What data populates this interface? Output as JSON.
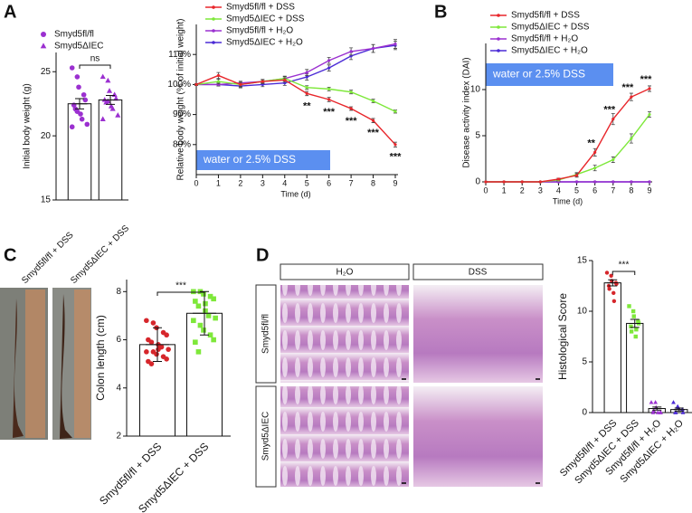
{
  "panel_labels": [
    "A",
    "B",
    "C",
    "D"
  ],
  "photos": {
    "labels": [
      "Smyd5fl/fl + DSS",
      "Smyd5ΔIEC + DSS"
    ]
  },
  "histology": {
    "columns": [
      "H₂O",
      "DSS"
    ],
    "rows": [
      "Smyd5fl/fl",
      "Smyd5ΔIEC"
    ]
  },
  "chart_data": [
    {
      "type": "dot_bar",
      "y_label": "Initial body weight (g)",
      "legend": true,
      "significance": "ns",
      "ylim": [
        15,
        26.5
      ],
      "yticks": [
        15,
        20,
        25
      ],
      "groups": [
        {
          "name": "Smyd5fl/fl",
          "color": "#9b30d0",
          "marker": "circle",
          "mean": 22.5,
          "error": 0.4,
          "points": [
            25.3,
            24.6,
            23.8,
            23.2,
            22.8,
            22.4,
            22.1,
            21.7,
            21.3,
            20.9,
            20.7,
            21.9
          ]
        },
        {
          "name": "Smyd5ΔIEC",
          "color": "#9b30d0",
          "marker": "triangle",
          "mean": 22.8,
          "error": 0.35,
          "points": [
            24.6,
            24.3,
            23.5,
            23.2,
            22.9,
            22.8,
            22.6,
            22.3,
            22.1,
            21.6,
            21.3,
            22.7
          ]
        }
      ]
    },
    {
      "type": "line",
      "y_label": "Relative body weight (% of initial weight)",
      "x_label": "Time (d)",
      "box_label": "water or 2.5% DSS",
      "stars_position": "below",
      "x": [
        0,
        1,
        2,
        3,
        4,
        5,
        6,
        7,
        8,
        9
      ],
      "xlim": [
        0,
        9
      ],
      "xticks": [
        0,
        1,
        2,
        3,
        4,
        5,
        6,
        7,
        8,
        9
      ],
      "ylim": [
        70,
        120
      ],
      "yticks": [
        {
          "value": 80,
          "label": "80%"
        },
        {
          "value": 90,
          "label": "90%"
        },
        {
          "value": 100,
          "label": "100%"
        },
        {
          "value": 110,
          "label": "110%"
        }
      ],
      "stars": [
        null,
        null,
        null,
        null,
        null,
        "**",
        "***",
        "***",
        "***",
        "***"
      ],
      "series": [
        {
          "name": "Smyd5fl/fl + DSS",
          "color": "#e8262b",
          "values": [
            100,
            103,
            100,
            101,
            101.5,
            97,
            95,
            92,
            88,
            80
          ],
          "errors": [
            0.3,
            1,
            0.8,
            0.6,
            0.7,
            0.7,
            0.7,
            0.6,
            0.7,
            0.8
          ]
        },
        {
          "name": "Smyd5ΔIEC + DSS",
          "color": "#7ee83a",
          "values": [
            100,
            101,
            100,
            101,
            102,
            99,
            98.5,
            97.5,
            94.5,
            91
          ],
          "errors": [
            0.3,
            0.8,
            0.7,
            0.6,
            0.6,
            0.6,
            0.6,
            0.6,
            0.6,
            0.5
          ]
        },
        {
          "name": "Smyd5fl/fl + H₂O",
          "color": "#9b30d0",
          "values": [
            100,
            100,
            100.5,
            101,
            102,
            104,
            108,
            111,
            112,
            113.5
          ],
          "errors": [
            0.3,
            0.5,
            0.6,
            0.7,
            0.8,
            1,
            1,
            1.2,
            1.3,
            1.5
          ]
        },
        {
          "name": "Smyd5ΔIEC + H₂O",
          "color": "#4b2bd6",
          "values": [
            100,
            100,
            99.5,
            100,
            100.5,
            102.5,
            105.5,
            109.5,
            112,
            113
          ],
          "errors": [
            0.3,
            0.5,
            0.6,
            0.7,
            0.8,
            1,
            1,
            1.2,
            1.3,
            1.4
          ]
        }
      ]
    },
    {
      "type": "line",
      "y_label": "Disease activity index (DAI)",
      "x_label": "Time (d)",
      "box_label": "water or 2.5% DSS",
      "stars_position": "above",
      "x": [
        0,
        1,
        2,
        3,
        4,
        5,
        6,
        7,
        8,
        9
      ],
      "xlim": [
        0,
        9
      ],
      "xticks": [
        0,
        1,
        2,
        3,
        4,
        5,
        6,
        7,
        8,
        9
      ],
      "ylim": [
        0,
        15
      ],
      "yticks": [
        0,
        5,
        10
      ],
      "stars": [
        null,
        null,
        null,
        null,
        null,
        null,
        "**",
        "***",
        "***",
        "***"
      ],
      "series": [
        {
          "name": "Smyd5fl/fl + DSS",
          "color": "#e8262b",
          "values": [
            0,
            0,
            0,
            0,
            0.3,
            0.7,
            3.2,
            6.8,
            9.2,
            10.1
          ],
          "errors": [
            0,
            0,
            0,
            0,
            0.1,
            0.2,
            0.4,
            0.6,
            0.4,
            0.3
          ]
        },
        {
          "name": "Smyd5ΔIEC + DSS",
          "color": "#7ee83a",
          "values": [
            0,
            0,
            0,
            0,
            0.2,
            0.8,
            1.5,
            2.4,
            4.7,
            7.3
          ],
          "errors": [
            0,
            0,
            0,
            0,
            0.1,
            0.2,
            0.3,
            0.3,
            0.5,
            0.3
          ]
        },
        {
          "name": "Smyd5fl/fl + H₂O",
          "color": "#9b30d0",
          "values": [
            0,
            0,
            0,
            0,
            0,
            0,
            0,
            0,
            0,
            0
          ],
          "errors": [
            0,
            0,
            0,
            0,
            0,
            0,
            0,
            0,
            0,
            0
          ]
        },
        {
          "name": "Smyd5ΔIEC + H₂O",
          "color": "#4b2bd6",
          "values": [
            0,
            0,
            0,
            0,
            0,
            0,
            0,
            0,
            0,
            0
          ],
          "errors": [
            0,
            0,
            0,
            0,
            0,
            0,
            0,
            0,
            0,
            0
          ]
        }
      ]
    },
    {
      "type": "dot_bar",
      "y_label": "Colon length (cm)",
      "legend": false,
      "significance": "***",
      "ylim": [
        2,
        8.5
      ],
      "yticks": [
        2,
        4,
        6,
        8
      ],
      "groups": [
        {
          "name": "Smyd5fl/fl + DSS",
          "color": "#d6262b",
          "marker": "circle",
          "mean": 5.8,
          "error": 0.7,
          "points": [
            6.8,
            6.7,
            6.5,
            6.3,
            6.2,
            6.0,
            5.9,
            5.8,
            5.7,
            5.6,
            5.5,
            5.5,
            5.4,
            5.3,
            5.2,
            5.1,
            5.0,
            5.6
          ]
        },
        {
          "name": "Smyd5ΔIEC + DSS",
          "color": "#7ee83a",
          "marker": "square",
          "mean": 7.1,
          "error": 0.9,
          "points": [
            8.0,
            8.0,
            7.9,
            7.8,
            7.7,
            7.6,
            7.4,
            7.2,
            7.0,
            6.9,
            6.8,
            6.6,
            6.4,
            6.2,
            6.0,
            5.9,
            5.5,
            7.5
          ]
        }
      ]
    },
    {
      "type": "dot_bar",
      "y_label": "Histological Score",
      "legend": false,
      "significance": "***",
      "ylim": [
        0,
        15
      ],
      "yticks": [
        0,
        5,
        10,
        15
      ],
      "groups": [
        {
          "name": "Smyd5fl/fl + DSS",
          "color": "#d6262b",
          "marker": "circle",
          "mean": 12.8,
          "error": 0.3,
          "points": [
            13.8,
            13.5,
            13,
            12.8,
            12.7,
            12.5,
            12.2,
            11.8,
            11
          ]
        },
        {
          "name": "Smyd5ΔIEC + DSS",
          "color": "#7ee83a",
          "marker": "square",
          "mean": 8.8,
          "error": 0.4,
          "points": [
            10.5,
            10,
            9.5,
            9,
            8.8,
            8.5,
            8,
            7.5,
            8.2
          ]
        },
        {
          "name": "Smyd5fl/fl + H₂O",
          "color": "#9b30d0",
          "marker": "triangle",
          "mean": 0.4,
          "error": 0.15,
          "points": [
            1,
            1,
            0.5,
            0,
            0,
            0,
            0.2,
            0
          ]
        },
        {
          "name": "Smyd5ΔIEC + H₂O",
          "color": "#4b2bd6",
          "marker": "triangle",
          "mean": 0.3,
          "error": 0.15,
          "points": [
            1,
            0.6,
            0.5,
            0.3,
            0,
            0,
            0
          ]
        }
      ]
    }
  ]
}
